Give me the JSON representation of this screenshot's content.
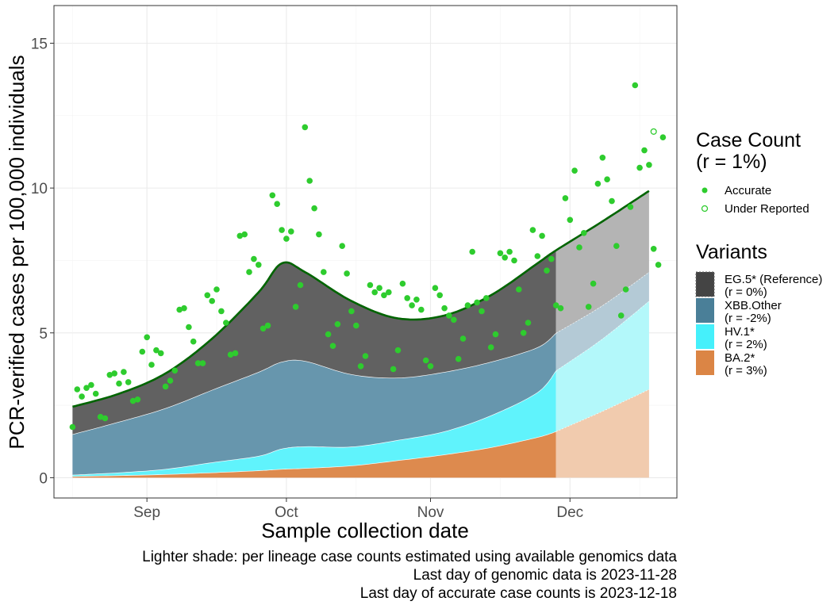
{
  "chart_data": {
    "type": "area",
    "xlabel": "Sample collection date",
    "ylabel": "PCR-verified cases per 100,000 individuals",
    "xlim": [
      "2023-08-12",
      "2023-12-24"
    ],
    "ylim": [
      -0.7,
      16.3
    ],
    "y_ticks": [
      0,
      5,
      10,
      15
    ],
    "x_ticks": [
      {
        "date": "2023-09-01",
        "label": "Sep"
      },
      {
        "date": "2023-10-01",
        "label": "Oct"
      },
      {
        "date": "2023-11-01",
        "label": "Nov"
      },
      {
        "date": "2023-12-01",
        "label": "Dec"
      }
    ],
    "grid": true,
    "genomic_cutoff_date": "2023-11-28",
    "area_x": [
      "2023-08-16",
      "2023-08-26",
      "2023-09-05",
      "2023-09-15",
      "2023-09-25",
      "2023-09-30",
      "2023-10-05",
      "2023-10-15",
      "2023-10-25",
      "2023-11-04",
      "2023-11-14",
      "2023-11-24",
      "2023-11-28",
      "2023-12-08",
      "2023-12-18"
    ],
    "total_curve": [
      2.45,
      2.9,
      3.6,
      4.8,
      6.4,
      7.4,
      7.1,
      6.1,
      5.5,
      5.6,
      6.3,
      7.4,
      7.85,
      8.85,
      9.9
    ],
    "series": [
      {
        "name": "BA.2*",
        "r_label": "(r = 3%)",
        "color": "#dd8a4e",
        "light_color": "#f1cbae",
        "values": [
          0.05,
          0.08,
          0.12,
          0.18,
          0.25,
          0.3,
          0.33,
          0.42,
          0.6,
          0.8,
          1.05,
          1.4,
          1.6,
          2.3,
          3.05
        ]
      },
      {
        "name": "HV.1*",
        "r_label": "(r = 2%)",
        "color": "#60f3fc",
        "light_color": "#b3f8fa",
        "values": [
          0.05,
          0.1,
          0.18,
          0.35,
          0.5,
          0.7,
          0.75,
          0.65,
          0.7,
          0.8,
          1.1,
          1.55,
          2.1,
          2.5,
          3.05
        ]
      },
      {
        "name": "XBB.Other",
        "r_label": "(r = -2%)",
        "color": "#6796ad",
        "light_color": "#b4cad6",
        "values": [
          1.4,
          1.75,
          2.1,
          2.5,
          2.9,
          3.0,
          2.95,
          2.5,
          2.15,
          2.05,
          1.85,
          1.55,
          1.3,
          1.15,
          1.0
        ]
      },
      {
        "name": "EG.5* (Reference)",
        "r_label": "(r = 0%)",
        "color": "#616161",
        "light_color": "#b4b4b4",
        "values": [
          0.95,
          0.97,
          1.2,
          1.77,
          2.75,
          3.4,
          3.07,
          2.53,
          2.05,
          1.95,
          2.3,
          2.9,
          2.85,
          2.9,
          2.8
        ]
      }
    ],
    "case_points": {
      "accurate_y": [
        1.75,
        3.05,
        2.8,
        3.1,
        3.2,
        2.9,
        2.1,
        2.05,
        3.55,
        3.6,
        3.25,
        3.65,
        3.3,
        2.65,
        2.7,
        4.35,
        4.85,
        3.9,
        4.4,
        4.3,
        3.15,
        3.35,
        3.7,
        5.8,
        5.85,
        5.2,
        4.7,
        3.95,
        3.95,
        6.3,
        6.1,
        6.5,
        5.75,
        5.35,
        4.25,
        4.3,
        8.35,
        8.4,
        7.1,
        7.55,
        7.35,
        5.15,
        5.25,
        9.75,
        9.45,
        8.55,
        8.25,
        8.5,
        5.9,
        6.65,
        12.1,
        10.25,
        9.3,
        8.4,
        7.1,
        4.95,
        4.55,
        5.3,
        8.0,
        7.05,
        5.75,
        5.25,
        3.85,
        4.2,
        6.65,
        6.4,
        6.55,
        6.3,
        6.4,
        3.75,
        4.4,
        6.7,
        6.2,
        5.95,
        6.15,
        5.8,
        4.05,
        3.85,
        6.55,
        6.3,
        5.85,
        5.6,
        5.45,
        4.1,
        4.8,
        5.95,
        7.8,
        6.05,
        5.75,
        6.2,
        4.5,
        4.95,
        7.75,
        7.6,
        7.8,
        7.5,
        6.5,
        5.0,
        5.35,
        8.55,
        7.65,
        8.35,
        7.15,
        7.55,
        5.95,
        5.85,
        9.65,
        8.9,
        10.6,
        7.95,
        8.45,
        5.9,
        6.7,
        10.15,
        11.05,
        10.3,
        9.55,
        8.0,
        5.6,
        6.5,
        9.35,
        13.55,
        10.7,
        11.3,
        10.8,
        7.9,
        7.35,
        11.75
      ],
      "under_reported": [
        {
          "date": "2023-12-19",
          "y": 11.95
        }
      ]
    },
    "legends": {
      "case": {
        "title_line1": "Case Count",
        "title_line2": "(r = 1%)",
        "accurate_label": "Accurate",
        "under_label": "Under Reported"
      },
      "variants": {
        "title": "Variants"
      }
    },
    "caption": [
      "Lighter shade: per lineage case counts estimated using available genomics data",
      "Last day of genomic data is 2023-11-28",
      "Last day of accurate case counts is 2023-12-18"
    ],
    "colors": {
      "curve": "#006400",
      "points": "#2ecc2e",
      "grid": "#ebebeb"
    }
  }
}
